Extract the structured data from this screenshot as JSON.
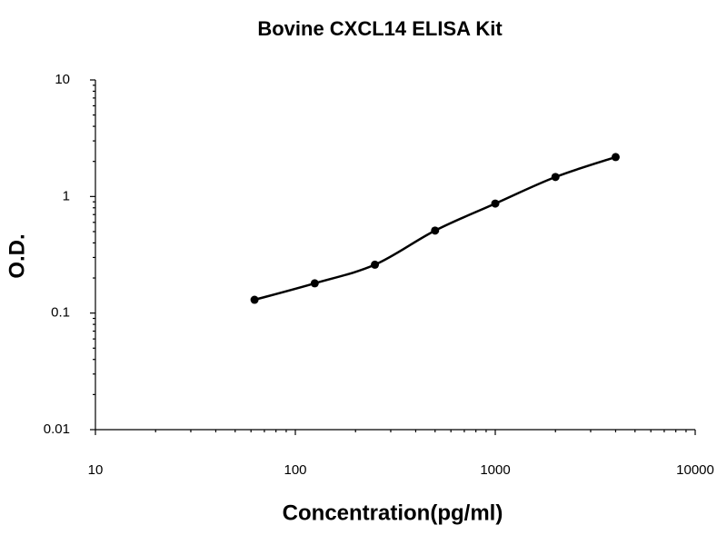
{
  "chart_data": {
    "type": "scatter",
    "title": "Bovine CXCL14 ELISA Kit",
    "x_label": "Concentration(pg/ml)",
    "y_label": "O.D.",
    "x": [
      62.5,
      125,
      250,
      500,
      1000,
      2000,
      4000
    ],
    "values": [
      0.13,
      0.18,
      0.26,
      0.51,
      0.87,
      1.47,
      2.18
    ],
    "color": "#000000",
    "fit_line": true,
    "minor_ticks": true,
    "x_log": true,
    "y_log": true,
    "xlim": [
      10,
      10000
    ],
    "xticks": [
      10,
      100,
      1000,
      10000
    ],
    "ylim": [
      0.01,
      10
    ],
    "yticks": [
      0.01,
      0.1,
      1,
      10
    ]
  }
}
